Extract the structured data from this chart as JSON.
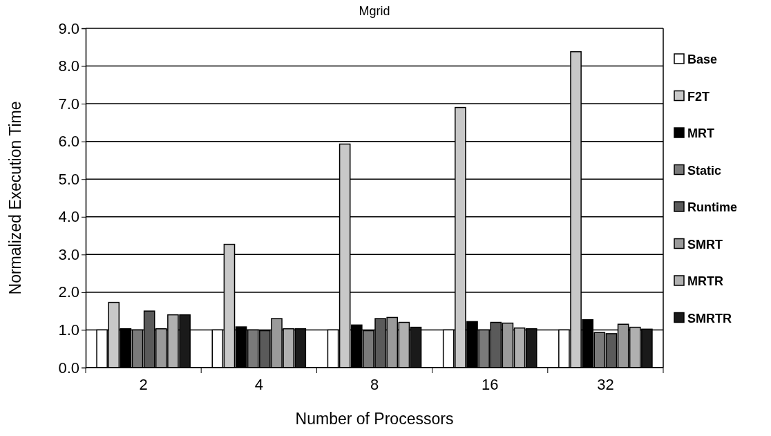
{
  "chart_data": {
    "type": "bar",
    "title": "Mgrid",
    "xlabel": "Number of Processors",
    "ylabel": "Normalized Execution Time",
    "categories": [
      "2",
      "4",
      "8",
      "16",
      "32"
    ],
    "series": [
      {
        "name": "Base",
        "color": "#ffffff",
        "values": [
          1.0,
          1.0,
          1.0,
          1.0,
          1.0
        ]
      },
      {
        "name": "F2T",
        "color": "#c8c8c8",
        "values": [
          1.73,
          3.27,
          5.93,
          6.9,
          8.38
        ]
      },
      {
        "name": "MRT",
        "color": "#000000",
        "values": [
          1.03,
          1.08,
          1.13,
          1.22,
          1.27
        ]
      },
      {
        "name": "Static",
        "color": "#7a7a7a",
        "values": [
          1.0,
          1.0,
          0.98,
          1.0,
          0.93
        ]
      },
      {
        "name": "Runtime",
        "color": "#5a5a5a",
        "values": [
          1.5,
          0.98,
          1.3,
          1.2,
          0.9
        ]
      },
      {
        "name": "SMRT",
        "color": "#9a9a9a",
        "values": [
          1.03,
          1.3,
          1.33,
          1.18,
          1.15
        ]
      },
      {
        "name": "MRTR",
        "color": "#b0b0b0",
        "values": [
          1.4,
          1.03,
          1.2,
          1.05,
          1.07
        ]
      },
      {
        "name": "SMRTR",
        "color": "#1a1a1a",
        "values": [
          1.4,
          1.03,
          1.07,
          1.03,
          1.02
        ]
      }
    ],
    "ylim": [
      0,
      9
    ],
    "yticks": [
      {
        "value": 0,
        "label": "0.0"
      },
      {
        "value": 1,
        "label": "1.0"
      },
      {
        "value": 2,
        "label": "2.0"
      },
      {
        "value": 3,
        "label": "3.0"
      },
      {
        "value": 4,
        "label": "4.0"
      },
      {
        "value": 5,
        "label": "5.0"
      },
      {
        "value": 6,
        "label": "6.0"
      },
      {
        "value": 7,
        "label": "7.0"
      },
      {
        "value": 8,
        "label": "8.0"
      },
      {
        "value": 9,
        "label": "9.0"
      }
    ],
    "grid": "y",
    "legend": "right"
  }
}
